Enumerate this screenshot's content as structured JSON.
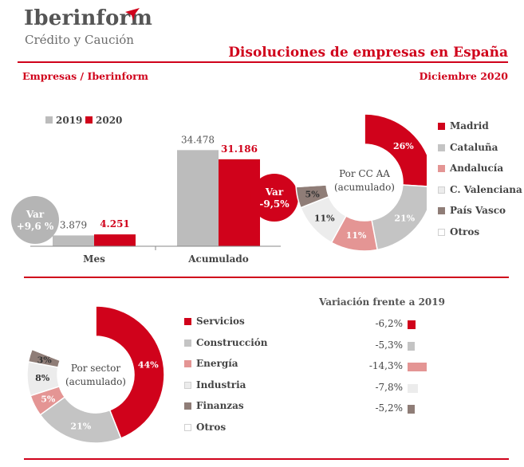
{
  "header": {
    "brand": "Iberinform",
    "brand_sub": "Crédito y Caución",
    "title": "Disoluciones de empresas en España",
    "subtitle_left": "Empresas / Iberinform",
    "subtitle_right": "Diciembre 2020"
  },
  "colors": {
    "accent": "#d0021b",
    "series_2019": "#bcbcbc",
    "series_2020": "#d0021b",
    "madrid": "#d0021b",
    "cataluna": "#c4c4c4",
    "andalucia": "#e49594",
    "valenciana": "#ececec",
    "pais_vasco": "#8f7d77",
    "otros": "#ffffff"
  },
  "chart_data": [
    {
      "type": "bar",
      "categories": [
        "Mes",
        "Acumulado"
      ],
      "series": [
        {
          "name": "2019",
          "values": [
            3879,
            34478
          ],
          "labels": [
            "3.879",
            "34.478"
          ]
        },
        {
          "name": "2020",
          "values": [
            4251,
            31186
          ],
          "labels": [
            "4.251",
            "31.186"
          ]
        }
      ],
      "annotations": [
        {
          "line1": "Var",
          "line2": "+9,6 %"
        },
        {
          "line1": "Var",
          "line2": "-9,5%"
        }
      ]
    },
    {
      "type": "pie",
      "center_line1": "Por CC AA",
      "center_line2": "(acumulado)",
      "slices": [
        {
          "name": "Madrid",
          "value": 26,
          "label": "26%",
          "color_key": "madrid"
        },
        {
          "name": "Cataluña",
          "value": 21,
          "label": "21%",
          "color_key": "cataluna"
        },
        {
          "name": "Andalucía",
          "value": 11,
          "label": "11%",
          "color_key": "andalucia"
        },
        {
          "name": "C. Valenciana",
          "value": 11,
          "label": "11%",
          "color_key": "valenciana"
        },
        {
          "name": "País Vasco",
          "value": 5,
          "label": "5%",
          "color_key": "pais_vasco"
        },
        {
          "name": "Otros",
          "value": 26,
          "label": "",
          "color_key": "otros"
        }
      ]
    },
    {
      "type": "pie",
      "center_line1": "Por sector",
      "center_line2": "(acumulado)",
      "slices": [
        {
          "name": "Servicios",
          "value": 44,
          "label": "44%",
          "color_key": "madrid"
        },
        {
          "name": "Construcción",
          "value": 21,
          "label": "21%",
          "color_key": "cataluna"
        },
        {
          "name": "Energía",
          "value": 5,
          "label": "5%",
          "color_key": "andalucia"
        },
        {
          "name": "Industria",
          "value": 8,
          "label": "8%",
          "color_key": "valenciana"
        },
        {
          "name": "Finanzas",
          "value": 3,
          "label": "3%",
          "color_key": "pais_vasco"
        },
        {
          "name": "Otros",
          "value": 19,
          "label": "",
          "color_key": "otros"
        }
      ]
    },
    {
      "type": "bar",
      "title": "Variación frente a 2019",
      "categories": [
        "Servicios",
        "Construcción",
        "Energía",
        "Industria",
        "Finanzas"
      ],
      "values": [
        -6.2,
        -5.3,
        -14.3,
        -7.8,
        -5.2
      ],
      "labels": [
        "-6,2%",
        "-5,3%",
        "-14,3%",
        "-7,8%",
        "-5,2%"
      ]
    }
  ]
}
